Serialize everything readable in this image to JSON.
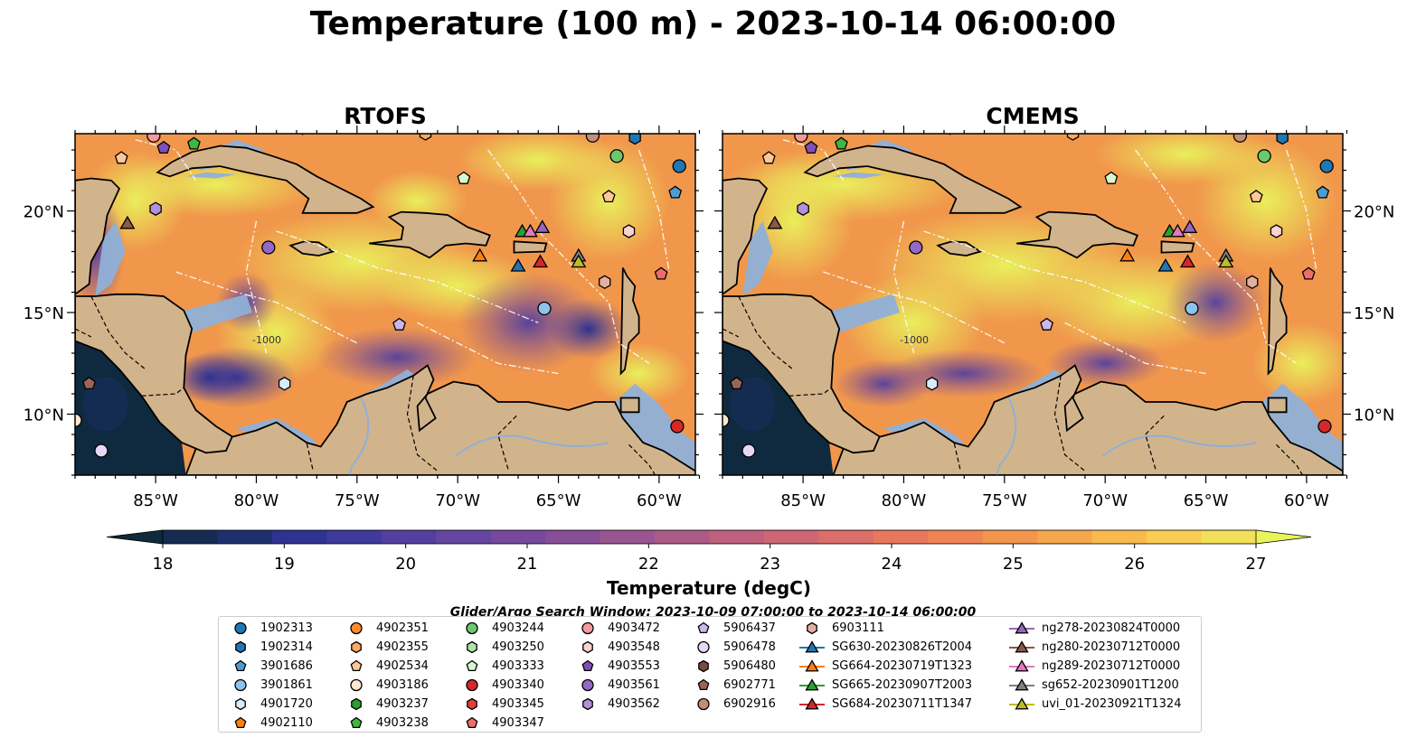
{
  "title": "Temperature (100 m) - 2023-10-14 06:00:00",
  "panels": [
    {
      "title": "RTOFS"
    },
    {
      "title": "CMEMS"
    }
  ],
  "axes": {
    "lat_labels": [
      "20°N",
      "15°N",
      "10°N"
    ],
    "lat_values": [
      20,
      15,
      10
    ],
    "lon_labels": [
      "85°W",
      "80°W",
      "75°W",
      "70°W",
      "65°W",
      "60°W"
    ],
    "lon_values": [
      -85,
      -80,
      -75,
      -70,
      -65,
      -60
    ],
    "lon_range": [
      -89,
      -58.2
    ],
    "lat_range": [
      7.0,
      23.8
    ]
  },
  "colorbar": {
    "title": "Temperature (degC)",
    "ticks": [
      "18",
      "19",
      "20",
      "21",
      "22",
      "23",
      "24",
      "25",
      "26",
      "27"
    ],
    "range": [
      18,
      27
    ],
    "colors": [
      "#0e2a3c",
      "#152b52",
      "#1e2f70",
      "#2e3290",
      "#3f3a9c",
      "#523f9f",
      "#64459f",
      "#76499c",
      "#874e97",
      "#995590",
      "#ac5a88",
      "#bd617f",
      "#cd6775",
      "#dc6e69",
      "#e8785d",
      "#f08553",
      "#f4954d",
      "#f7a74b",
      "#f8ba4d",
      "#f8cd52",
      "#f3e058",
      "#e9f35c"
    ]
  },
  "search_window": "Glider/Argo Search Window: 2023-10-09 07:00:00 to 2023-10-14 06:00:00",
  "legend": [
    {
      "label": "1902313",
      "marker": "circle",
      "color": "#1f77b4"
    },
    {
      "label": "1902314",
      "marker": "hexagon",
      "color": "#1f77b4"
    },
    {
      "label": "3901686",
      "marker": "pentagon",
      "color": "#4d9cd0"
    },
    {
      "label": "3901861",
      "marker": "circle",
      "color": "#8cc4ec"
    },
    {
      "label": "4901720",
      "marker": "hexagon",
      "color": "#d6ecfa"
    },
    {
      "label": "4902110",
      "marker": "pentagon",
      "color": "#ff7f0e"
    },
    {
      "label": "4902351",
      "marker": "circle",
      "color": "#ff8c2e"
    },
    {
      "label": "4902355",
      "marker": "hexagon",
      "color": "#ffa95e"
    },
    {
      "label": "4902534",
      "marker": "pentagon",
      "color": "#ffc797"
    },
    {
      "label": "4903186",
      "marker": "circle",
      "color": "#ffe7cf"
    },
    {
      "label": "4903237",
      "marker": "hexagon",
      "color": "#2ca02c"
    },
    {
      "label": "4903238",
      "marker": "pentagon",
      "color": "#3fb63f"
    },
    {
      "label": "4903244",
      "marker": "circle",
      "color": "#6cc86c"
    },
    {
      "label": "4903250",
      "marker": "hexagon",
      "color": "#aee6a4"
    },
    {
      "label": "4903333",
      "marker": "pentagon",
      "color": "#d9f7cf"
    },
    {
      "label": "4903340",
      "marker": "circle",
      "color": "#d62728"
    },
    {
      "label": "4903345",
      "marker": "hexagon",
      "color": "#e0403c"
    },
    {
      "label": "4903347",
      "marker": "pentagon",
      "color": "#ef6c6c"
    },
    {
      "label": "4903472",
      "marker": "circle",
      "color": "#f49a9a"
    },
    {
      "label": "4903548",
      "marker": "hexagon",
      "color": "#fbd2d2"
    },
    {
      "label": "4903553",
      "marker": "pentagon",
      "color": "#7f4fb5"
    },
    {
      "label": "4903561",
      "marker": "circle",
      "color": "#9468c6"
    },
    {
      "label": "4903562",
      "marker": "hexagon",
      "color": "#b290da"
    },
    {
      "label": "5906437",
      "marker": "pentagon",
      "color": "#cdb6ee"
    },
    {
      "label": "5906478",
      "marker": "circle",
      "color": "#e6d7f7"
    },
    {
      "label": "5906480",
      "marker": "hexagon",
      "color": "#7b4a3e"
    },
    {
      "label": "6902771",
      "marker": "pentagon",
      "color": "#9a6556"
    },
    {
      "label": "6902916",
      "marker": "circle",
      "color": "#c38e78"
    },
    {
      "label": "6903111",
      "marker": "hexagon",
      "color": "#e3b0a0"
    },
    {
      "label": "SG630-20230826T2004",
      "marker": "triangle-line",
      "color": "#1f77b4"
    },
    {
      "label": "SG664-20230719T1323",
      "marker": "triangle-line",
      "color": "#ff7f0e"
    },
    {
      "label": "SG665-20230907T2003",
      "marker": "triangle-line",
      "color": "#2ca02c"
    },
    {
      "label": "SG684-20230711T1347",
      "marker": "triangle-line",
      "color": "#d62728"
    },
    {
      "label": "ng278-20230824T0000",
      "marker": "triangle-line",
      "color": "#9467bd"
    },
    {
      "label": "ng280-20230712T0000",
      "marker": "triangle-line",
      "color": "#8c564b"
    },
    {
      "label": "ng289-20230712T0000",
      "marker": "triangle-line",
      "color": "#e377c2"
    },
    {
      "label": "sg652-20230901T1200",
      "marker": "triangle-line",
      "color": "#7f7f7f"
    },
    {
      "label": "uvi_01-20230921T1324",
      "marker": "triangle-line",
      "color": "#bcbd22"
    }
  ],
  "markers": [
    {
      "label": "1902313",
      "lon": -59,
      "lat": 22.2
    },
    {
      "label": "1902314",
      "lon": -61.2,
      "lat": 23.6
    },
    {
      "label": "3901686",
      "lon": -59.2,
      "lat": 20.9
    },
    {
      "label": "3901861",
      "lon": -65.7,
      "lat": 15.2
    },
    {
      "label": "4901720",
      "lon": -78.6,
      "lat": 11.5
    },
    {
      "label": "4903244",
      "lon": -62.1,
      "lat": 22.7
    },
    {
      "label": "4903333",
      "lon": -69.7,
      "lat": 21.6
    },
    {
      "label": "4903238",
      "lon": -83.1,
      "lat": 23.3
    },
    {
      "label": "4903340",
      "lon": -59.1,
      "lat": 9.4
    },
    {
      "label": "4903347",
      "lon": -59.9,
      "lat": 16.9
    },
    {
      "label": "4903186",
      "lon": -89,
      "lat": 9.7
    },
    {
      "label": "4903472",
      "lon": -85.1,
      "lat": 23.7
    },
    {
      "label": "4903548",
      "lon": -61.5,
      "lat": 19.0
    },
    {
      "label": "4903553",
      "lon": -84.6,
      "lat": 23.1
    },
    {
      "label": "4903561",
      "lon": -79.4,
      "lat": 18.2
    },
    {
      "label": "4903562",
      "lon": -85.0,
      "lat": 20.1
    },
    {
      "label": "5906437",
      "lon": -72.9,
      "lat": 14.4
    },
    {
      "label": "5906478",
      "lon": -87.7,
      "lat": 8.2
    },
    {
      "label": "6902771",
      "lon": -88.3,
      "lat": 11.5
    },
    {
      "label": "6902916",
      "lon": -63.3,
      "lat": 23.7
    },
    {
      "label": "6903111",
      "lon": -62.7,
      "lat": 16.5
    },
    {
      "label": "4902534",
      "lon": -62.5,
      "lat": 20.7
    },
    {
      "label": "4902355",
      "lon": -71.6,
      "lat": 23.8
    },
    {
      "label": "4902534",
      "lon": -86.7,
      "lat": 22.6
    },
    {
      "label": "SG630-20230826T2004",
      "lon": -67.0,
      "lat": 17.3
    },
    {
      "label": "SG664-20230719T1323",
      "lon": -68.9,
      "lat": 17.8
    },
    {
      "label": "SG665-20230907T2003",
      "lon": -66.8,
      "lat": 19.0
    },
    {
      "label": "SG684-20230711T1347",
      "lon": -65.9,
      "lat": 17.5
    },
    {
      "label": "ng278-20230824T0000",
      "lon": -65.8,
      "lat": 19.2
    },
    {
      "label": "ng280-20230712T0000",
      "lon": -86.4,
      "lat": 19.4
    },
    {
      "label": "ng289-20230712T0000",
      "lon": -66.4,
      "lat": 19.0
    },
    {
      "label": "sg652-20230901T1200",
      "lon": -64.0,
      "lat": 17.8
    },
    {
      "label": "uvi_01-20230921T1324",
      "lon": -64.0,
      "lat": 17.5
    }
  ]
}
